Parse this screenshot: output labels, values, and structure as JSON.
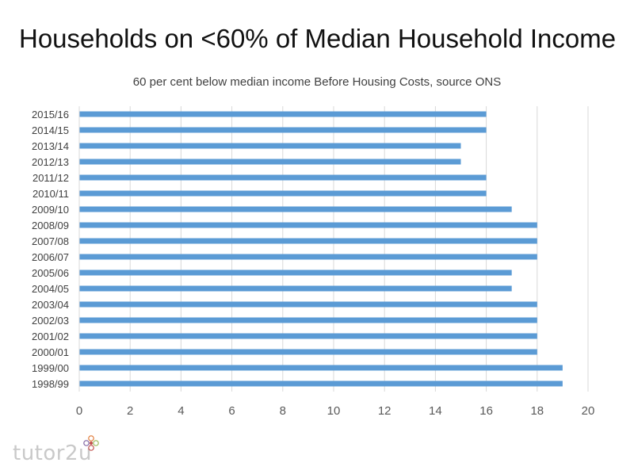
{
  "page": {
    "title": "Households on <60% of Median Household Income",
    "logo_text": "tutor2u",
    "logo_icon": "flower-icon"
  },
  "chart_data": {
    "type": "bar",
    "orientation": "horizontal",
    "title": "60 per cent below median income Before Housing Costs, source ONS",
    "xlabel": "",
    "ylabel": "",
    "xlim": [
      0,
      20
    ],
    "x_ticks": [
      "0",
      "2",
      "4",
      "6",
      "8",
      "10",
      "12",
      "14",
      "16",
      "18",
      "20"
    ],
    "grid": true,
    "bar_color": "#5b9bd5",
    "categories": [
      "2015/16",
      "2014/15",
      "2013/14",
      "2012/13",
      "2011/12",
      "2010/11",
      "2009/10",
      "2008/09",
      "2007/08",
      "2006/07",
      "2005/06",
      "2004/05",
      "2003/04",
      "2002/03",
      "2001/02",
      "2000/01",
      "1999/00",
      "1998/99"
    ],
    "values": [
      16,
      16,
      15,
      15,
      16,
      16,
      17,
      18,
      18,
      18,
      17,
      17,
      18,
      18,
      18,
      18,
      19,
      19
    ]
  }
}
